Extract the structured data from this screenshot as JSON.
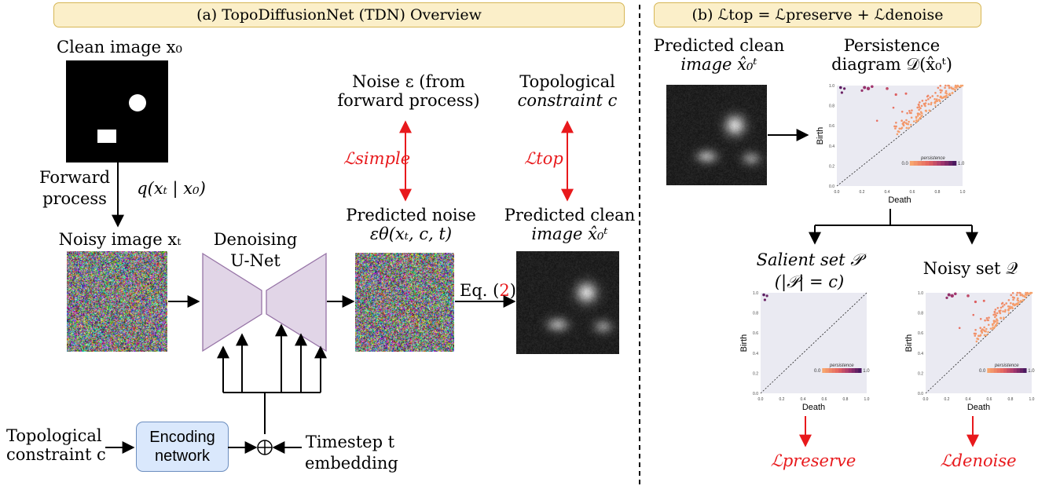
{
  "panel_a": {
    "title": "(a) TopoDiffusionNet (TDN) Overview",
    "clean_image_label": "Clean image x₀",
    "forward_process_label_1": "Forward",
    "forward_process_label_2": "process",
    "forward_eq": "q(xₜ | x₀)",
    "noisy_image_label": "Noisy image xₜ",
    "unet_label_1": "Denoising",
    "unet_label_2": "U-Net",
    "noise_label_1": "Noise ε (from",
    "noise_label_2": "forward process)",
    "loss_simple": "ℒsimple",
    "predicted_noise_label_1": "Predicted noise",
    "predicted_noise_label_2": "εθ(xₜ, c, t)",
    "topo_constraint_label_1": "Topological",
    "topo_constraint_label_2": "constraint c",
    "loss_top": "ℒtop",
    "predicted_clean_label_1": "Predicted clean",
    "predicted_clean_label_2": "image x̂₀ᵗ",
    "eq_label": "Eq. (",
    "eq_ref": "2",
    "eq_close": ")",
    "input_constraint_1": "Topological",
    "input_constraint_2": "constraint c",
    "encoding_network": "Encoding network",
    "timestep_1": "Timestep t",
    "timestep_2": "embedding"
  },
  "panel_b": {
    "title": "(b) ℒtop = ℒpreserve + ℒdenoise",
    "pred_clean_label_1": "Predicted clean",
    "pred_clean_label_2": "image x̂₀ᵗ",
    "persistence_label_1": "Persistence",
    "persistence_label_2": "diagram 𝒟(x̂₀ᵗ)",
    "salient_label_1": "Salient set 𝒫",
    "salient_label_2": "(|𝒫| = c)",
    "noisy_set_label": "Noisy set 𝒬",
    "loss_preserve": "ℒpreserve",
    "loss_denoise": "ℒdenoise",
    "axis_birth": "Birth",
    "axis_death": "Death",
    "legend_title": "persistence",
    "legend_min": "0.0",
    "legend_max": "1.0",
    "ticks": [
      "0.0",
      "0.2",
      "0.4",
      "0.6",
      "0.8",
      "1.0"
    ]
  },
  "colors": {
    "banner_fill": "#fbefc9",
    "banner_border": "#d6b656",
    "unet": "#e1d5e7",
    "encoder": "#dae8fc",
    "loss": "#e8191c",
    "pd_bg": "#eaeaf2"
  }
}
